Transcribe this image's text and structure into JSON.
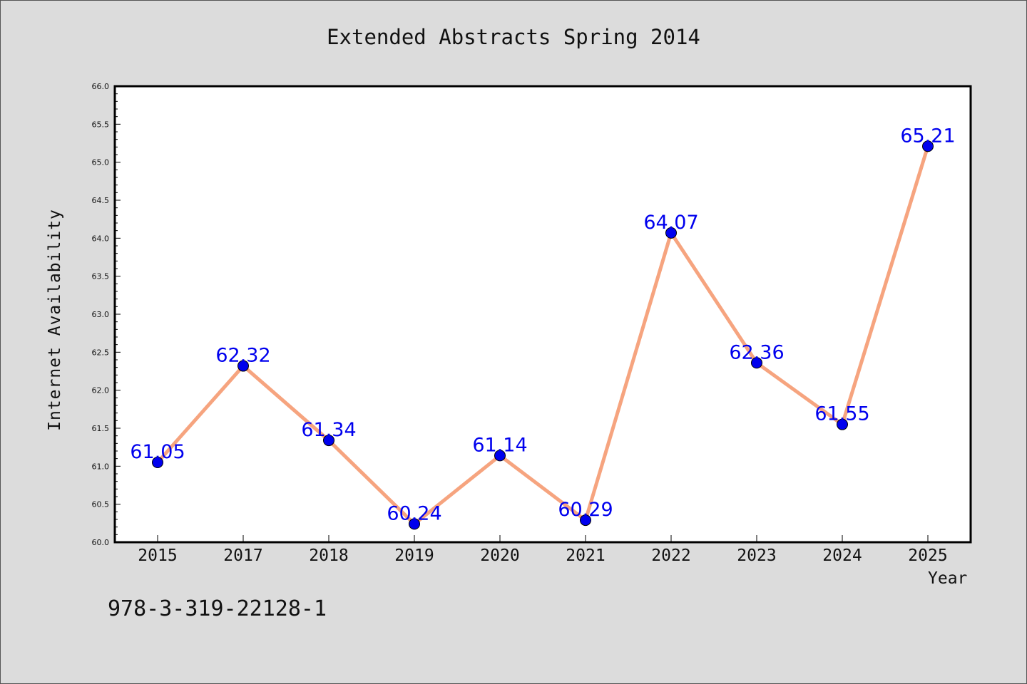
{
  "page": {
    "footer_text": "978-3-319-22128-1"
  },
  "chart_data": {
    "type": "line",
    "title": "Extended Abstracts Spring 2014",
    "xlabel": "Year",
    "ylabel": "Internet Availability",
    "categories": [
      "2015",
      "2017",
      "2018",
      "2019",
      "2020",
      "2021",
      "2022",
      "2023",
      "2024",
      "2025"
    ],
    "series": [
      {
        "values": [
          61.05,
          62.32,
          61.34,
          60.24,
          61.14,
          60.29,
          64.07,
          62.36,
          61.55,
          65.21
        ],
        "line_color": "#f6a47f",
        "marker_color": "#0000ee"
      }
    ],
    "data_labels": [
      "61.05",
      "62.32",
      "61.34",
      "60.24",
      "61.14",
      "60.29",
      "64.07",
      "62.36",
      "61.55",
      "65.21"
    ],
    "ylim": [
      60.0,
      66.0
    ],
    "yticks": [
      "60.0",
      "60.5",
      "61.0",
      "61.5",
      "62.0",
      "62.5",
      "63.0",
      "63.5",
      "64.0",
      "64.5",
      "65.0",
      "65.5",
      "66.0"
    ],
    "grid": false,
    "legend": "none",
    "label_color": "#0000ee"
  }
}
